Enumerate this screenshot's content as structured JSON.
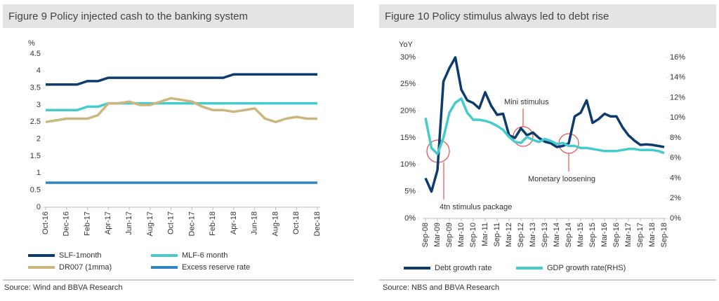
{
  "chart_data": [
    {
      "type": "line",
      "title": "Figure 9 Policy injected cash to the banking system",
      "y_label": "%",
      "source": "Source: Wind and BBVA Research",
      "categories": [
        "Oct-16",
        null,
        "Dec-16",
        null,
        "Feb-17",
        null,
        "Apr-17",
        null,
        "Jun-17",
        null,
        "Aug-17",
        null,
        "Oct-17",
        null,
        "Dec-17",
        null,
        "Feb-18",
        null,
        "Apr-18",
        null,
        "Jun-18",
        null,
        "Aug-18",
        null,
        "Oct-18",
        null,
        "Dec-18"
      ],
      "ylim": [
        0,
        4.5
      ],
      "yticks": [
        0,
        0.5,
        1,
        1.5,
        2,
        2.5,
        3,
        3.5,
        4,
        4.5
      ],
      "series": [
        {
          "name": "SLF-1month",
          "color": "#0d3b70",
          "values": [
            3.6,
            3.6,
            3.6,
            3.6,
            3.7,
            3.7,
            3.8,
            3.8,
            3.8,
            3.8,
            3.8,
            3.8,
            3.8,
            3.8,
            3.8,
            3.8,
            3.8,
            3.8,
            3.9,
            3.9,
            3.9,
            3.9,
            3.9,
            3.9,
            3.9,
            3.9,
            3.9
          ]
        },
        {
          "name": "MLF-6 month",
          "color": "#45cbcb",
          "values": [
            2.85,
            2.85,
            2.85,
            2.85,
            2.95,
            2.95,
            3.05,
            3.05,
            3.05,
            3.05,
            3.05,
            3.05,
            3.05,
            3.05,
            3.05,
            3.05,
            3.05,
            3.05,
            3.05,
            3.05,
            3.05,
            3.05,
            3.05,
            3.05,
            3.05,
            3.05,
            3.05
          ]
        },
        {
          "name": "DR007 (1mma)",
          "color": "#cdb57e",
          "values": [
            2.5,
            2.55,
            2.6,
            2.6,
            2.6,
            2.7,
            3.05,
            3.05,
            3.1,
            3.0,
            3.0,
            3.1,
            3.2,
            3.15,
            3.1,
            2.95,
            2.85,
            2.85,
            2.8,
            2.85,
            2.9,
            2.6,
            2.5,
            2.6,
            2.65,
            2.6,
            2.6
          ]
        },
        {
          "name": "Excess reserve rate",
          "color": "#2f86c6",
          "values": [
            0.72,
            0.72,
            0.72,
            0.72,
            0.72,
            0.72,
            0.72,
            0.72,
            0.72,
            0.72,
            0.72,
            0.72,
            0.72,
            0.72,
            0.72,
            0.72,
            0.72,
            0.72,
            0.72,
            0.72,
            0.72,
            0.72,
            0.72,
            0.72,
            0.72,
            0.72,
            0.72
          ]
        }
      ]
    },
    {
      "type": "line",
      "title": "Figure 10 Policy stimulus always led to debt rise",
      "y_label": "YoY",
      "source": "Source: NBS and BBVA Research",
      "annotations": [
        "4tn stimulus package",
        "Mini stimulus",
        "Monetary loosening"
      ],
      "categories": [
        "Sep-08",
        null,
        "Mar-09",
        null,
        "Sep-09",
        null,
        "Mar-10",
        null,
        "Sep-10",
        null,
        "Mar-11",
        null,
        "Sep-11",
        null,
        "Mar-12",
        null,
        "Sep-12",
        null,
        "Mar-13",
        null,
        "Sep-13",
        null,
        "Mar-14",
        null,
        "Sep-14",
        null,
        "Mar-15",
        null,
        "Sep-15",
        null,
        "Mar-16",
        null,
        "Sep-16",
        null,
        "Mar-17",
        null,
        "Sep-17",
        null,
        "Mar-18",
        null,
        "Sep-18"
      ],
      "ylim": [
        0,
        30
      ],
      "yticks": [
        {
          "value": 0,
          "label": "0%"
        },
        {
          "value": 5,
          "label": "5%"
        },
        {
          "value": 10,
          "label": "10%"
        },
        {
          "value": 15,
          "label": "15%"
        },
        {
          "value": 20,
          "label": "20%"
        },
        {
          "value": 25,
          "label": "25%"
        },
        {
          "value": 30,
          "label": "30%"
        }
      ],
      "y2lim": [
        0,
        16
      ],
      "y2ticks": [
        {
          "value": 0,
          "label": "0%"
        },
        {
          "value": 2,
          "label": "2%"
        },
        {
          "value": 4,
          "label": "4%"
        },
        {
          "value": 6,
          "label": "6%"
        },
        {
          "value": 8,
          "label": "8%"
        },
        {
          "value": 10,
          "label": "10%"
        },
        {
          "value": 12,
          "label": "12%"
        },
        {
          "value": 14,
          "label": "14%"
        },
        {
          "value": 16,
          "label": "16%"
        }
      ],
      "series": [
        {
          "name": "Debt growth rate",
          "color": "#0d3b70",
          "values": [
            7.5,
            5,
            9,
            25.5,
            28,
            30,
            24,
            22,
            21.5,
            20.5,
            23.5,
            21,
            19.3,
            19.5,
            15.5,
            15,
            16.8,
            15.5,
            16,
            15,
            14.3,
            14,
            13.3,
            13.5,
            14,
            19,
            19.7,
            22,
            17.8,
            18.5,
            19.5,
            19,
            19,
            17,
            15.5,
            14.5,
            13.7,
            13.8,
            13.7,
            13.5,
            13.3
          ]
        },
        {
          "name": "GDP growth rate(RHS)",
          "color": "#45cbcb",
          "axis": "y2",
          "values": [
            10,
            7,
            6.4,
            8,
            10.5,
            11.5,
            11.9,
            10.5,
            9.8,
            9.8,
            9.7,
            9.5,
            9.2,
            8.8,
            8.1,
            7.6,
            7.5,
            8.1,
            7.8,
            7.6,
            7.9,
            7.7,
            7.4,
            7.5,
            7.2,
            7.2,
            7.0,
            7.0,
            6.9,
            6.8,
            6.7,
            6.7,
            6.7,
            6.8,
            6.9,
            6.9,
            6.8,
            6.8,
            6.8,
            6.7,
            6.5
          ]
        }
      ]
    }
  ]
}
